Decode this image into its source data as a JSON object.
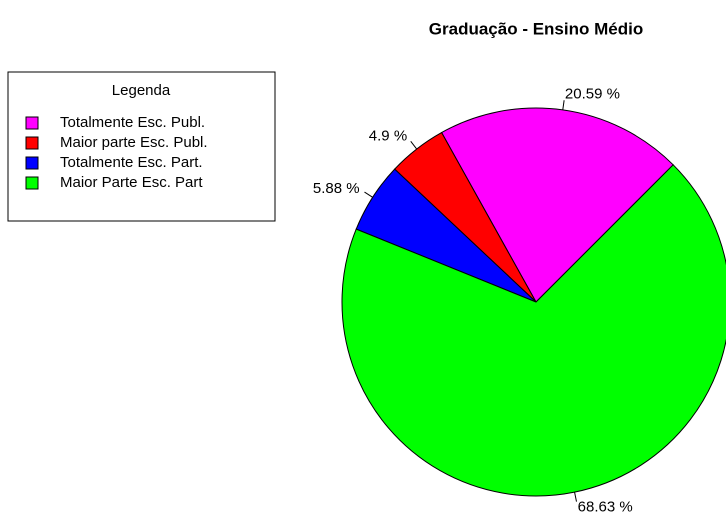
{
  "chart_data": {
    "type": "pie",
    "title": "Graduação - Ensino Médio",
    "legend_title": "Legenda",
    "categories": [
      "Totalmente Esc. Publ.",
      "Maior parte Esc. Publ.",
      "Totalmente Esc. Part.",
      "Maior Parte Esc. Part"
    ],
    "values": [
      20.59,
      4.9,
      5.88,
      68.63
    ],
    "value_labels": [
      "20.59 %",
      "4.9 %",
      "5.88 %",
      "68.63 %"
    ],
    "colors": [
      "#ff00ff",
      "#ff0000",
      "#0000ff",
      "#00ff00"
    ],
    "legend": "top-left"
  }
}
